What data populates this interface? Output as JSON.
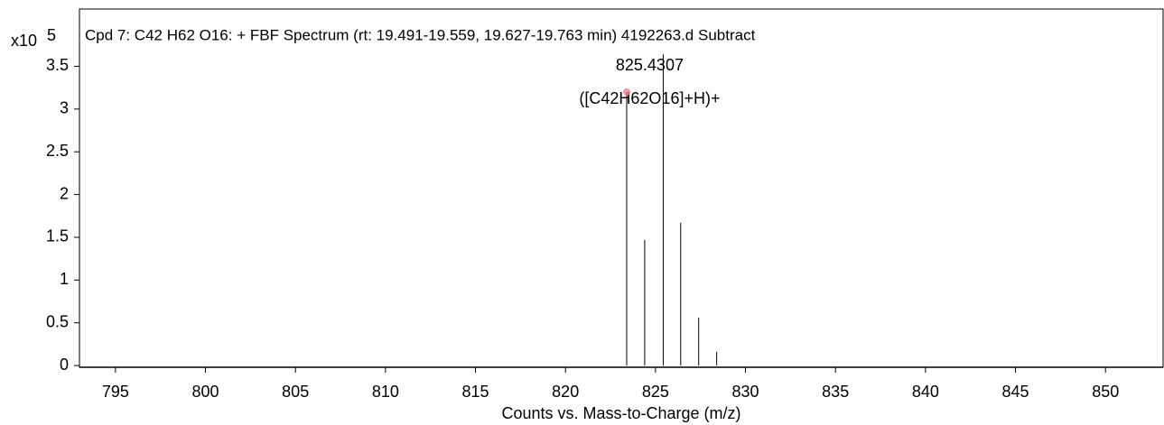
{
  "chart_data": {
    "type": "stem",
    "title": "Cpd 7: C42 H62 O16: + FBF Spectrum (rt: 19.491-19.559, 19.627-19.763 min) 4192263.d  Subtract",
    "x_label": "Counts vs. Mass-to-Charge (m/z)",
    "y_scale_label": "x10",
    "y_scale_exponent": "5",
    "x": [
      823.4,
      824.4,
      825.43,
      826.4,
      827.4,
      828.4
    ],
    "values": [
      3.2,
      1.47,
      3.64,
      1.67,
      0.56,
      0.16
    ],
    "color": "#000000",
    "annotations": [
      "825.4307",
      "([C42H62O16]+H)+"
    ],
    "xlim": [
      793.0,
      853.2
    ],
    "xticks": [
      795,
      800,
      805,
      810,
      815,
      820,
      825,
      830,
      835,
      840,
      845,
      850
    ],
    "ylim": [
      -0.02,
      4.17
    ],
    "yticks": [
      0,
      0.5,
      1,
      1.5,
      2,
      2.5,
      3,
      3.5
    ]
  }
}
